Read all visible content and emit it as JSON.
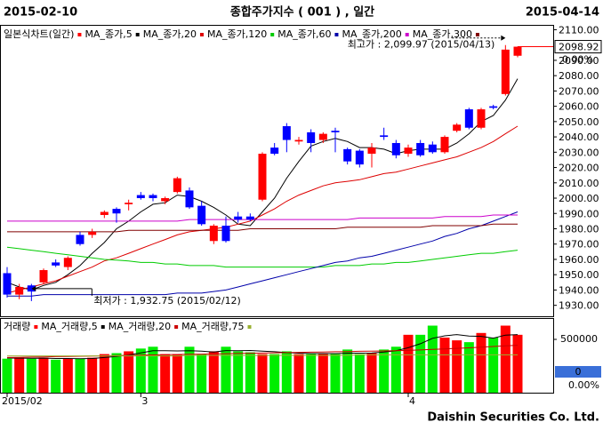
{
  "chart_data": {
    "type": "candlestick",
    "start_label": "2015-02-10",
    "title": "종합주가지수 ( 001 ) , 일간",
    "end_label": "2015-04-14",
    "chart_label": "일본식차트(일간)",
    "footer": "Daishin Securities Co. Ltd.",
    "up_color": "#ff0000",
    "down_color": "#0000ff",
    "categories": [
      "2015/02",
      null,
      null,
      null,
      null,
      null,
      null,
      null,
      null,
      null,
      null,
      "3",
      null,
      null,
      null,
      null,
      null,
      null,
      null,
      null,
      null,
      null,
      null,
      null,
      null,
      null,
      null,
      null,
      null,
      null,
      null,
      null,
      null,
      "4",
      null,
      null,
      null,
      null,
      null,
      null,
      null,
      null,
      null
    ],
    "open": [
      1951,
      1937,
      1943,
      1945,
      1958,
      1955,
      1976,
      1976,
      1989,
      1993,
      1996,
      2002,
      2002,
      1998,
      2004,
      2005,
      1995,
      1972,
      1982,
      1988,
      1988,
      1999,
      2033,
      2047,
      2037,
      2043,
      2038,
      2044,
      2032,
      2031,
      2029,
      2041,
      2036,
      2029,
      2036,
      2035,
      2030,
      2044,
      2058,
      2046,
      2060,
      2068,
      2093
    ],
    "high": [
      1955,
      1944,
      1944,
      1954,
      1960,
      1962,
      1978,
      1980,
      1992,
      1994,
      1999,
      2004,
      2003,
      2001,
      2014,
      2007,
      1998,
      1983,
      1988,
      1991,
      1990,
      2030,
      2036,
      2049,
      2040,
      2045,
      2043,
      2046,
      2033,
      2032,
      2036,
      2046,
      2038,
      2035,
      2038,
      2037,
      2041,
      2049,
      2059,
      2059,
      2061,
      2099.97,
      2099
    ],
    "low": [
      1935,
      1934,
      1932.75,
      1944,
      1955,
      1953,
      1969,
      1974,
      1987,
      1984,
      1992,
      1999,
      1998,
      1996,
      2003,
      1993,
      1982,
      1970,
      1971,
      1984,
      1985,
      1998,
      2028,
      2030,
      2035,
      2030,
      2036,
      2030,
      2022,
      2020,
      2020,
      2038,
      2026,
      2027,
      2027,
      2029,
      2029,
      2043,
      2045,
      2045,
      2058,
      2067,
      2092
    ],
    "close": [
      1937,
      1942,
      1939,
      1953,
      1956,
      1961,
      1970,
      1978,
      1991,
      1990,
      1997,
      2000,
      2000,
      2000,
      2013,
      1994,
      1983,
      1982,
      1972,
      1986,
      1986,
      2029,
      2029,
      2038,
      2038,
      2036,
      2042,
      2043,
      2024,
      2022,
      2033,
      2040,
      2028,
      2033,
      2028,
      2030,
      2040,
      2048,
      2046,
      2058,
      2059,
      2097,
      2098.92
    ],
    "ylim": [
      1924,
      2112
    ],
    "yticks": [
      {
        "value": 1930,
        "label": "1930.00"
      },
      {
        "value": 1940,
        "label": "1940.00"
      },
      {
        "value": 1950,
        "label": "1950.00"
      },
      {
        "value": 1960,
        "label": "1960.00"
      },
      {
        "value": 1970,
        "label": "1970.00"
      },
      {
        "value": 1980,
        "label": "1980.00"
      },
      {
        "value": 1990,
        "label": "1990.00"
      },
      {
        "value": 2000,
        "label": "2000.00"
      },
      {
        "value": 2010,
        "label": "2010.00"
      },
      {
        "value": 2020,
        "label": "2020.00"
      },
      {
        "value": 2030,
        "label": "2030.00"
      },
      {
        "value": 2040,
        "label": "2040.00"
      },
      {
        "value": 2050,
        "label": "2050.00"
      },
      {
        "value": 2060,
        "label": "2060.00"
      },
      {
        "value": 2070,
        "label": "2070.00"
      },
      {
        "value": 2080,
        "label": "2080.00"
      },
      {
        "value": 2090,
        "label": "2090.00"
      },
      {
        "value": 2110,
        "label": "2110.00"
      }
    ],
    "last_price": {
      "value": 2098.92,
      "label": "2098.92"
    },
    "last_change": "0.00%",
    "annotations": [
      {
        "text": "최고가 : 2,099.97 (2015/04/13)",
        "value": 2099.97,
        "color": "#ff0000"
      },
      {
        "text": "최저가 : 1,932.75 (2015/02/12)",
        "value": 1932.75,
        "color": "#000080"
      }
    ],
    "series": [
      {
        "name": "MA_종가,5",
        "color": "#000000",
        "values": [
          1945,
          1942,
          1940,
          1943,
          1945,
          1950,
          1956,
          1964,
          1971,
          1980,
          1985,
          1991,
          1996,
          1997,
          2002,
          2001,
          1998,
          1994,
          1989,
          1983,
          1982,
          1991,
          2000,
          2013,
          2024,
          2034,
          2037,
          2039,
          2037,
          2033,
          2033,
          2032,
          2029,
          2031,
          2032,
          2032,
          2032,
          2036,
          2042,
          2050,
          2054,
          2064,
          2078
        ]
      },
      {
        "name": "MA_종가,20",
        "color": "#dd0000",
        "values": [
          1938,
          1940,
          1942,
          1944,
          1946,
          1949,
          1952,
          1955,
          1959,
          1961,
          1964,
          1967,
          1970,
          1973,
          1976,
          1978,
          1979,
          1980,
          1981,
          1983,
          1985,
          1989,
          1993,
          1998,
          2002,
          2005,
          2008,
          2010,
          2011,
          2012,
          2014,
          2016,
          2017,
          2019,
          2021,
          2023,
          2025,
          2027,
          2030,
          2033,
          2037,
          2042,
          2047
        ]
      },
      {
        "name": "MA_종가,120",
        "color": "#00cc00",
        "values": [
          1968,
          1967,
          1966,
          1965,
          1964,
          1963,
          1962,
          1961,
          1960,
          1959.5,
          1959,
          1958,
          1958,
          1957,
          1957,
          1956,
          1956,
          1956,
          1955,
          1955,
          1955,
          1955,
          1955,
          1955,
          1955,
          1955,
          1955,
          1956,
          1956,
          1956,
          1957,
          1957,
          1958,
          1958,
          1959,
          1960,
          1961,
          1962,
          1963,
          1964,
          1964,
          1965,
          1966
        ]
      },
      {
        "name": "MA_종가,60",
        "color": "#0000aa",
        "values": [
          1936,
          1936,
          1936,
          1937,
          1937,
          1937,
          1937,
          1937,
          1937,
          1937,
          1937,
          1937,
          1937,
          1937,
          1938,
          1938,
          1938,
          1939,
          1940,
          1942,
          1944,
          1946,
          1948,
          1950,
          1952,
          1954,
          1956,
          1958,
          1959,
          1961,
          1962,
          1964,
          1966,
          1968,
          1970,
          1972,
          1975,
          1977,
          1980,
          1982,
          1985,
          1988,
          1991
        ]
      },
      {
        "name": "MA_종가,200",
        "color": "#cc00cc",
        "values": [
          1985,
          1985,
          1985,
          1985,
          1985,
          1985,
          1985,
          1985,
          1985,
          1985,
          1985,
          1985,
          1985,
          1985,
          1985,
          1986,
          1986,
          1986,
          1986,
          1986,
          1986,
          1986,
          1986,
          1986,
          1986,
          1986,
          1986,
          1986,
          1986,
          1987,
          1987,
          1987,
          1987,
          1987,
          1987,
          1987,
          1988,
          1988,
          1988,
          1988,
          1989,
          1989,
          1989
        ]
      },
      {
        "name": "MA_종가,300",
        "color": "#800000",
        "values": [
          1978,
          1978,
          1978,
          1978,
          1978,
          1978,
          1978,
          1978,
          1978,
          1978,
          1979,
          1979,
          1979,
          1979,
          1979,
          1979,
          1979,
          1979,
          1979,
          1979,
          1980,
          1980,
          1980,
          1980,
          1980,
          1980,
          1980,
          1980,
          1981,
          1981,
          1981,
          1981,
          1981,
          1981,
          1981,
          1982,
          1982,
          1982,
          1982,
          1982,
          1983,
          1983,
          1983
        ]
      }
    ],
    "volume": {
      "label": "거래량",
      "up_color": "#ff0000",
      "down_color": "#00ee00",
      "values": [
        319000,
        328000,
        319000,
        328000,
        310000,
        319000,
        319000,
        328000,
        362000,
        371000,
        388000,
        414000,
        431000,
        362000,
        362000,
        431000,
        362000,
        388000,
        431000,
        388000,
        379000,
        362000,
        362000,
        388000,
        362000,
        362000,
        362000,
        362000,
        405000,
        362000,
        371000,
        405000,
        431000,
        543000,
        543000,
        629000,
        517000,
        491000,
        474000,
        560000,
        517000,
        629000,
        543000
      ],
      "ylim": [
        0,
        650000
      ],
      "yticks": [
        500000
      ],
      "change_box": "0",
      "change_pct": "0.00%",
      "series": [
        {
          "name": "MA_거래량,5",
          "color": "#000000",
          "values": [
            325000,
            324000,
            323000,
            324000,
            321000,
            321000,
            319000,
            321000,
            330000,
            340000,
            354000,
            373000,
            393000,
            393000,
            392000,
            394000,
            390000,
            381000,
            395000,
            394000,
            396000,
            390000,
            384000,
            376000,
            371000,
            367000,
            367000,
            367000,
            371000,
            371000,
            372000,
            381000,
            394000,
            422000,
            459000,
            510000,
            533000,
            545000,
            531000,
            528000,
            512000,
            540000,
            545000
          ]
        },
        {
          "name": "MA_거래량,20",
          "color": "#cc0000",
          "values": [
            330000,
            332000,
            334000,
            336000,
            338000,
            340000,
            342000,
            344000,
            346000,
            348000,
            350000,
            352000,
            354000,
            356000,
            358000,
            360000,
            362000,
            364000,
            366000,
            368000,
            370000,
            372000,
            374000,
            376000,
            378000,
            380000,
            382000,
            384000,
            386000,
            388000,
            390000,
            392000,
            394000,
            397000,
            401000,
            406000,
            411000,
            416000,
            421000,
            427000,
            433000,
            439000,
            445000
          ]
        },
        {
          "name": "MA_거래량,75",
          "color": "#99b030",
          "values": [
            345000,
            345000,
            345000,
            345000,
            345000,
            345000,
            345000,
            345000,
            345000,
            345000,
            345000,
            345000,
            345000,
            345000,
            345000,
            350000,
            350000,
            350000,
            350000,
            350000,
            350000,
            350000,
            350000,
            350000,
            350000,
            350000,
            350000,
            350000,
            350000,
            355000,
            355000,
            355000,
            355000,
            355000,
            355000,
            355000,
            355000,
            355000,
            355000,
            355000,
            355000,
            355000,
            355000
          ]
        }
      ]
    }
  }
}
